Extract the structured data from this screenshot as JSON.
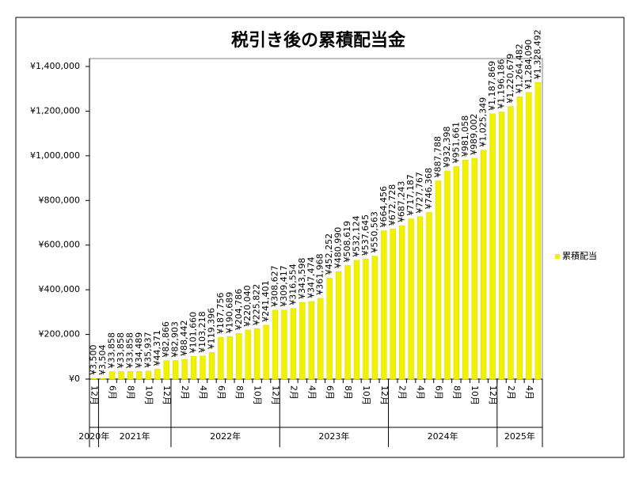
{
  "chart_data": {
    "type": "bar",
    "title": "税引き後の累積配当金",
    "categories": [
      "12月",
      null,
      "6月",
      null,
      "8月",
      null,
      "10月",
      null,
      "12月",
      null,
      "2月",
      null,
      "4月",
      null,
      "6月",
      null,
      "8月",
      null,
      "10月",
      null,
      "12月",
      null,
      "2月",
      null,
      "4月",
      null,
      "6月",
      null,
      "8月",
      null,
      "10月",
      null,
      "12月",
      null,
      "2月",
      null,
      "4月",
      null,
      "6月",
      null,
      "8月",
      null,
      "10月",
      null,
      "12月",
      null,
      "2月",
      null,
      "4月",
      null
    ],
    "year_groups": [
      "2020年",
      "2021年",
      "2022年",
      "2023年",
      "2024年",
      "2025年"
    ],
    "series": [
      {
        "name": "累積配当",
        "color": "#f2f200",
        "values": [
          3500,
          3504,
          33858,
          33858,
          33858,
          34489,
          35937,
          44371,
          82866,
          82903,
          88442,
          101660,
          103218,
          119396,
          187756,
          190689,
          204786,
          220040,
          225822,
          241401,
          308627,
          309417,
          316554,
          343598,
          347474,
          361968,
          452252,
          480990,
          508619,
          532124,
          537645,
          550563,
          664456,
          672728,
          687243,
          717187,
          727767,
          746368,
          887788,
          932398,
          951661,
          981058,
          989002,
          1025349,
          1187869,
          1196186,
          1220679,
          1264482,
          1284090,
          1328492
        ],
        "value_labels": [
          "¥3,500",
          "¥3,504",
          "¥33,858",
          "¥33,858",
          "¥33,858",
          "¥34,489",
          "¥35,937",
          "¥44,371",
          "¥82,866",
          "¥82,903",
          "¥88,442",
          "¥101,660",
          "¥103,218",
          "¥119,396",
          "¥187,756",
          "¥190,689",
          "¥204,786",
          "¥220,040",
          "¥225,822",
          "¥241,401",
          "¥308,627",
          "¥309,417",
          "¥316,554",
          "¥343,598",
          "¥347,474",
          "¥361,968",
          "¥452,252",
          "¥480,990",
          "¥508,619",
          "¥532,124",
          "¥537,645",
          "¥550,563",
          "¥664,456",
          "¥672,728",
          "¥687,243",
          "¥717,187",
          "¥727,767",
          "¥746,368",
          "¥887,788",
          "¥932,398",
          "¥951,661",
          "¥981,058",
          "¥989,002",
          "¥1,025,349",
          "¥1,187,869",
          "¥1,196,186",
          "¥1,220,679",
          "¥1,264,482",
          "¥1,284,090",
          "¥1,328,492"
        ]
      }
    ],
    "ylim": [
      0,
      1400000
    ],
    "yticks": [
      {
        "value": 0,
        "label": "¥0"
      },
      {
        "value": 200000,
        "label": "¥200,000"
      },
      {
        "value": 400000,
        "label": "¥400,000"
      },
      {
        "value": 600000,
        "label": "¥600,000"
      },
      {
        "value": 800000,
        "label": "¥800,000"
      },
      {
        "value": 1000000,
        "label": "¥1,000,000"
      },
      {
        "value": 1200000,
        "label": "¥1,200,000"
      },
      {
        "value": 1400000,
        "label": "¥1,400,000"
      }
    ],
    "legend": "right"
  }
}
